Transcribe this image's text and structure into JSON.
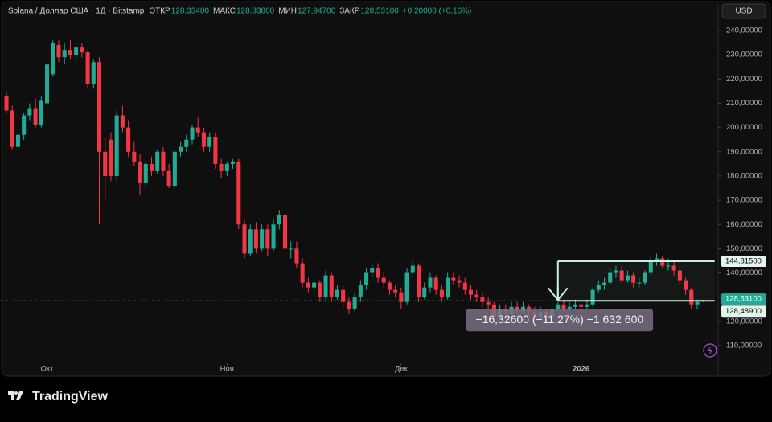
{
  "header": {
    "symbol": "Solana / Доллар США · 1Д · Bitstamp",
    "fields": [
      {
        "name": "ОТКР",
        "value": "128,33400"
      },
      {
        "name": "МАКС",
        "value": "128,83800"
      },
      {
        "name": "МИН",
        "value": "127,94700"
      },
      {
        "name": "ЗАКР",
        "value": "128,53100"
      }
    ],
    "change": "+0,20000 (+0,16%)",
    "currency": "USD"
  },
  "brand": "TradingView",
  "chart_data": {
    "type": "candlestick",
    "up_color": "#22ab94",
    "down_color": "#f23645",
    "xlim": [
      -1.11,
      122.6
    ],
    "xticks": [
      {
        "value": 7,
        "label": "Окт"
      },
      {
        "value": 38,
        "label": "Ноя"
      },
      {
        "value": 68,
        "label": "Дек"
      },
      {
        "value": 99,
        "label": "2026"
      }
    ],
    "ylim": [
      97.4,
      250.95
    ],
    "yticks": [
      {
        "value": 110,
        "label": "110,00000"
      },
      {
        "value": 120,
        "label": "120,00000"
      },
      {
        "value": 130,
        "label": "130,00000"
      },
      {
        "value": 140,
        "label": "140,00000"
      },
      {
        "value": 150,
        "label": "150,00000"
      },
      {
        "value": 160,
        "label": "160,00000"
      },
      {
        "value": 170,
        "label": "170,00000"
      },
      {
        "value": 180,
        "label": "180,00000"
      },
      {
        "value": 190,
        "label": "190,00000"
      },
      {
        "value": 200,
        "label": "200,00000"
      },
      {
        "value": 210,
        "label": "210,00000"
      },
      {
        "value": 220,
        "label": "220,00000"
      },
      {
        "value": 230,
        "label": "230,00000"
      },
      {
        "value": 240,
        "label": "240,00000"
      }
    ],
    "candles": [
      [
        213,
        215,
        206,
        207
      ],
      [
        207,
        209,
        191,
        192
      ],
      [
        192,
        199,
        190,
        197
      ],
      [
        197,
        206,
        195,
        205
      ],
      [
        205,
        210,
        203,
        208
      ],
      [
        208,
        212,
        200,
        201
      ],
      [
        201,
        213,
        200,
        211
      ],
      [
        210,
        227,
        208,
        226
      ],
      [
        222,
        236,
        221,
        235
      ],
      [
        234,
        236,
        227,
        229
      ],
      [
        229,
        235,
        226,
        232
      ],
      [
        232,
        236,
        228,
        230
      ],
      [
        230,
        234,
        227,
        233
      ],
      [
        233,
        235,
        229,
        231
      ],
      [
        231,
        232,
        216,
        218
      ],
      [
        218,
        228,
        216,
        227
      ],
      [
        227,
        229,
        160,
        190
      ],
      [
        190,
        196,
        170,
        180
      ],
      [
        195,
        198,
        178,
        180
      ],
      [
        180,
        207,
        178,
        205
      ],
      [
        205,
        209,
        198,
        200
      ],
      [
        200,
        203,
        188,
        190
      ],
      [
        190,
        194,
        184,
        186
      ],
      [
        186,
        189,
        172,
        177
      ],
      [
        177,
        186,
        175,
        185
      ],
      [
        185,
        188,
        180,
        182
      ],
      [
        182,
        191,
        181,
        190
      ],
      [
        190,
        192,
        180,
        182
      ],
      [
        182,
        185,
        175,
        176
      ],
      [
        176,
        191,
        175,
        190
      ],
      [
        190,
        194,
        188,
        192
      ],
      [
        192,
        197,
        190,
        195
      ],
      [
        195,
        201,
        193,
        200
      ],
      [
        200,
        204,
        196,
        198
      ],
      [
        198,
        200,
        190,
        192
      ],
      [
        192,
        198,
        190,
        196
      ],
      [
        196,
        198,
        183,
        185
      ],
      [
        185,
        187,
        179,
        182
      ],
      [
        182,
        186,
        180,
        185
      ],
      [
        185,
        187,
        183,
        186
      ],
      [
        186,
        187,
        158,
        160
      ],
      [
        160,
        162,
        146,
        148
      ],
      [
        148,
        160,
        147,
        158
      ],
      [
        158,
        161,
        148,
        150
      ],
      [
        150,
        160,
        149,
        158
      ],
      [
        158,
        160,
        147,
        150
      ],
      [
        150,
        162,
        149,
        160
      ],
      [
        160,
        166,
        158,
        164
      ],
      [
        164,
        171,
        148,
        150
      ],
      [
        150,
        153,
        146,
        150
      ],
      [
        150,
        153,
        142,
        144
      ],
      [
        144,
        146,
        134,
        136
      ],
      [
        136,
        138,
        132,
        134
      ],
      [
        134,
        138,
        131,
        136
      ],
      [
        136,
        137,
        128,
        130
      ],
      [
        130,
        141,
        128,
        139
      ],
      [
        139,
        140,
        128,
        130
      ],
      [
        130,
        135,
        129,
        133
      ],
      [
        133,
        135,
        125,
        128
      ],
      [
        128,
        130,
        123,
        125
      ],
      [
        125,
        132,
        124,
        130
      ],
      [
        130,
        137,
        128,
        135
      ],
      [
        135,
        142,
        133,
        140
      ],
      [
        140,
        144,
        138,
        142
      ],
      [
        142,
        144,
        136,
        138
      ],
      [
        138,
        140,
        134,
        136
      ],
      [
        136,
        137,
        131,
        133
      ],
      [
        133,
        135,
        130,
        132
      ],
      [
        132,
        134,
        125,
        128
      ],
      [
        128,
        142,
        127,
        140
      ],
      [
        140,
        146,
        138,
        143
      ],
      [
        143,
        144,
        128,
        130
      ],
      [
        130,
        136,
        129,
        134
      ],
      [
        134,
        140,
        132,
        138
      ],
      [
        138,
        139,
        131,
        133
      ],
      [
        133,
        135,
        128,
        130
      ],
      [
        130,
        140,
        129,
        138
      ],
      [
        138,
        140,
        135,
        137
      ],
      [
        137,
        139,
        134,
        136
      ],
      [
        136,
        138,
        131,
        133
      ],
      [
        133,
        135,
        129,
        131
      ],
      [
        131,
        133,
        128,
        130
      ],
      [
        130,
        132,
        126,
        128
      ],
      [
        128,
        130,
        125,
        127
      ],
      [
        127,
        128,
        120,
        122
      ],
      [
        122,
        127,
        121,
        125
      ],
      [
        125,
        127,
        121,
        123
      ],
      [
        123,
        128,
        122,
        126
      ],
      [
        126,
        128,
        122,
        124
      ],
      [
        124,
        128,
        123,
        126
      ],
      [
        126,
        127,
        122,
        124
      ],
      [
        124,
        126,
        120,
        122
      ],
      [
        122,
        126,
        121,
        124
      ],
      [
        124,
        125,
        120,
        122
      ],
      [
        122,
        127,
        121,
        125
      ],
      [
        125,
        128,
        124,
        127
      ],
      [
        127,
        129,
        124,
        125
      ],
      [
        125,
        128,
        124,
        126
      ],
      [
        126,
        129,
        125,
        127
      ],
      [
        127,
        128,
        124,
        126
      ],
      [
        126,
        129,
        125,
        127
      ],
      [
        127,
        134,
        126,
        133
      ],
      [
        133,
        137,
        132,
        135
      ],
      [
        135,
        138,
        133,
        136
      ],
      [
        136,
        142,
        135,
        140
      ],
      [
        140,
        143,
        138,
        141
      ],
      [
        141,
        143,
        136,
        137
      ],
      [
        137,
        141,
        136,
        139
      ],
      [
        139,
        140,
        134,
        136
      ],
      [
        136,
        138,
        134,
        136
      ],
      [
        136,
        141,
        135,
        140
      ],
      [
        140,
        147,
        139,
        145
      ],
      [
        145,
        148,
        143,
        146
      ],
      [
        146,
        147,
        142,
        143
      ],
      [
        143,
        146,
        141,
        143
      ],
      [
        143,
        145,
        139,
        141
      ],
      [
        141,
        142,
        135,
        137
      ],
      [
        137,
        138,
        131,
        133
      ],
      [
        133,
        134,
        125,
        127
      ],
      [
        127,
        129,
        125,
        128
      ],
      [
        128.334,
        128.838,
        127.947,
        128.531
      ]
    ],
    "last_price": {
      "value": 128.531,
      "label": "128,53100"
    },
    "measure": {
      "start": 95,
      "end": 122,
      "top": {
        "value": 144.815,
        "label": "144,81500"
      },
      "bottom": {
        "value": 128.489,
        "label": "128,48900"
      },
      "text": "−16,32600 (−11,27%) −1 632 600"
    }
  }
}
